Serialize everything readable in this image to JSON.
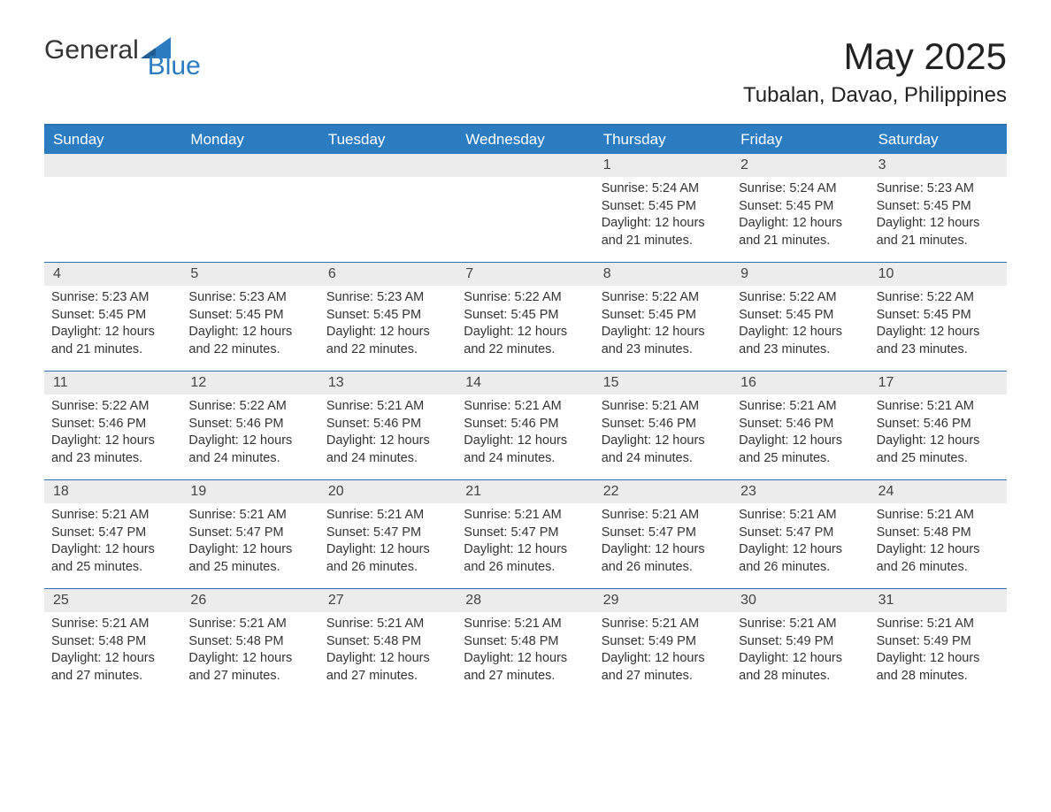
{
  "brand": {
    "word1": "General",
    "word2": "Blue",
    "accent_color": "#2b7cc0"
  },
  "title": "May 2025",
  "subtitle": "Tubalan, Davao, Philippines",
  "colors": {
    "header_bg": "#2b7cc0",
    "header_text": "#ffffff",
    "week_divider": "#2b6fb3",
    "daynum_bg": "#ececec",
    "body_text": "#333333",
    "page_bg": "#ffffff"
  },
  "fonts": {
    "title_size": 42,
    "subtitle_size": 24,
    "dayname_size": 17,
    "cell_size": 14.5
  },
  "day_names": [
    "Sunday",
    "Monday",
    "Tuesday",
    "Wednesday",
    "Thursday",
    "Friday",
    "Saturday"
  ],
  "weeks": [
    [
      {
        "day": "",
        "sunrise": "",
        "sunset": "",
        "daylight": ""
      },
      {
        "day": "",
        "sunrise": "",
        "sunset": "",
        "daylight": ""
      },
      {
        "day": "",
        "sunrise": "",
        "sunset": "",
        "daylight": ""
      },
      {
        "day": "",
        "sunrise": "",
        "sunset": "",
        "daylight": ""
      },
      {
        "day": "1",
        "sunrise": "Sunrise: 5:24 AM",
        "sunset": "Sunset: 5:45 PM",
        "daylight": "Daylight: 12 hours and 21 minutes."
      },
      {
        "day": "2",
        "sunrise": "Sunrise: 5:24 AM",
        "sunset": "Sunset: 5:45 PM",
        "daylight": "Daylight: 12 hours and 21 minutes."
      },
      {
        "day": "3",
        "sunrise": "Sunrise: 5:23 AM",
        "sunset": "Sunset: 5:45 PM",
        "daylight": "Daylight: 12 hours and 21 minutes."
      }
    ],
    [
      {
        "day": "4",
        "sunrise": "Sunrise: 5:23 AM",
        "sunset": "Sunset: 5:45 PM",
        "daylight": "Daylight: 12 hours and 21 minutes."
      },
      {
        "day": "5",
        "sunrise": "Sunrise: 5:23 AM",
        "sunset": "Sunset: 5:45 PM",
        "daylight": "Daylight: 12 hours and 22 minutes."
      },
      {
        "day": "6",
        "sunrise": "Sunrise: 5:23 AM",
        "sunset": "Sunset: 5:45 PM",
        "daylight": "Daylight: 12 hours and 22 minutes."
      },
      {
        "day": "7",
        "sunrise": "Sunrise: 5:22 AM",
        "sunset": "Sunset: 5:45 PM",
        "daylight": "Daylight: 12 hours and 22 minutes."
      },
      {
        "day": "8",
        "sunrise": "Sunrise: 5:22 AM",
        "sunset": "Sunset: 5:45 PM",
        "daylight": "Daylight: 12 hours and 23 minutes."
      },
      {
        "day": "9",
        "sunrise": "Sunrise: 5:22 AM",
        "sunset": "Sunset: 5:45 PM",
        "daylight": "Daylight: 12 hours and 23 minutes."
      },
      {
        "day": "10",
        "sunrise": "Sunrise: 5:22 AM",
        "sunset": "Sunset: 5:45 PM",
        "daylight": "Daylight: 12 hours and 23 minutes."
      }
    ],
    [
      {
        "day": "11",
        "sunrise": "Sunrise: 5:22 AM",
        "sunset": "Sunset: 5:46 PM",
        "daylight": "Daylight: 12 hours and 23 minutes."
      },
      {
        "day": "12",
        "sunrise": "Sunrise: 5:22 AM",
        "sunset": "Sunset: 5:46 PM",
        "daylight": "Daylight: 12 hours and 24 minutes."
      },
      {
        "day": "13",
        "sunrise": "Sunrise: 5:21 AM",
        "sunset": "Sunset: 5:46 PM",
        "daylight": "Daylight: 12 hours and 24 minutes."
      },
      {
        "day": "14",
        "sunrise": "Sunrise: 5:21 AM",
        "sunset": "Sunset: 5:46 PM",
        "daylight": "Daylight: 12 hours and 24 minutes."
      },
      {
        "day": "15",
        "sunrise": "Sunrise: 5:21 AM",
        "sunset": "Sunset: 5:46 PM",
        "daylight": "Daylight: 12 hours and 24 minutes."
      },
      {
        "day": "16",
        "sunrise": "Sunrise: 5:21 AM",
        "sunset": "Sunset: 5:46 PM",
        "daylight": "Daylight: 12 hours and 25 minutes."
      },
      {
        "day": "17",
        "sunrise": "Sunrise: 5:21 AM",
        "sunset": "Sunset: 5:46 PM",
        "daylight": "Daylight: 12 hours and 25 minutes."
      }
    ],
    [
      {
        "day": "18",
        "sunrise": "Sunrise: 5:21 AM",
        "sunset": "Sunset: 5:47 PM",
        "daylight": "Daylight: 12 hours and 25 minutes."
      },
      {
        "day": "19",
        "sunrise": "Sunrise: 5:21 AM",
        "sunset": "Sunset: 5:47 PM",
        "daylight": "Daylight: 12 hours and 25 minutes."
      },
      {
        "day": "20",
        "sunrise": "Sunrise: 5:21 AM",
        "sunset": "Sunset: 5:47 PM",
        "daylight": "Daylight: 12 hours and 26 minutes."
      },
      {
        "day": "21",
        "sunrise": "Sunrise: 5:21 AM",
        "sunset": "Sunset: 5:47 PM",
        "daylight": "Daylight: 12 hours and 26 minutes."
      },
      {
        "day": "22",
        "sunrise": "Sunrise: 5:21 AM",
        "sunset": "Sunset: 5:47 PM",
        "daylight": "Daylight: 12 hours and 26 minutes."
      },
      {
        "day": "23",
        "sunrise": "Sunrise: 5:21 AM",
        "sunset": "Sunset: 5:47 PM",
        "daylight": "Daylight: 12 hours and 26 minutes."
      },
      {
        "day": "24",
        "sunrise": "Sunrise: 5:21 AM",
        "sunset": "Sunset: 5:48 PM",
        "daylight": "Daylight: 12 hours and 26 minutes."
      }
    ],
    [
      {
        "day": "25",
        "sunrise": "Sunrise: 5:21 AM",
        "sunset": "Sunset: 5:48 PM",
        "daylight": "Daylight: 12 hours and 27 minutes."
      },
      {
        "day": "26",
        "sunrise": "Sunrise: 5:21 AM",
        "sunset": "Sunset: 5:48 PM",
        "daylight": "Daylight: 12 hours and 27 minutes."
      },
      {
        "day": "27",
        "sunrise": "Sunrise: 5:21 AM",
        "sunset": "Sunset: 5:48 PM",
        "daylight": "Daylight: 12 hours and 27 minutes."
      },
      {
        "day": "28",
        "sunrise": "Sunrise: 5:21 AM",
        "sunset": "Sunset: 5:48 PM",
        "daylight": "Daylight: 12 hours and 27 minutes."
      },
      {
        "day": "29",
        "sunrise": "Sunrise: 5:21 AM",
        "sunset": "Sunset: 5:49 PM",
        "daylight": "Daylight: 12 hours and 27 minutes."
      },
      {
        "day": "30",
        "sunrise": "Sunrise: 5:21 AM",
        "sunset": "Sunset: 5:49 PM",
        "daylight": "Daylight: 12 hours and 28 minutes."
      },
      {
        "day": "31",
        "sunrise": "Sunrise: 5:21 AM",
        "sunset": "Sunset: 5:49 PM",
        "daylight": "Daylight: 12 hours and 28 minutes."
      }
    ]
  ]
}
